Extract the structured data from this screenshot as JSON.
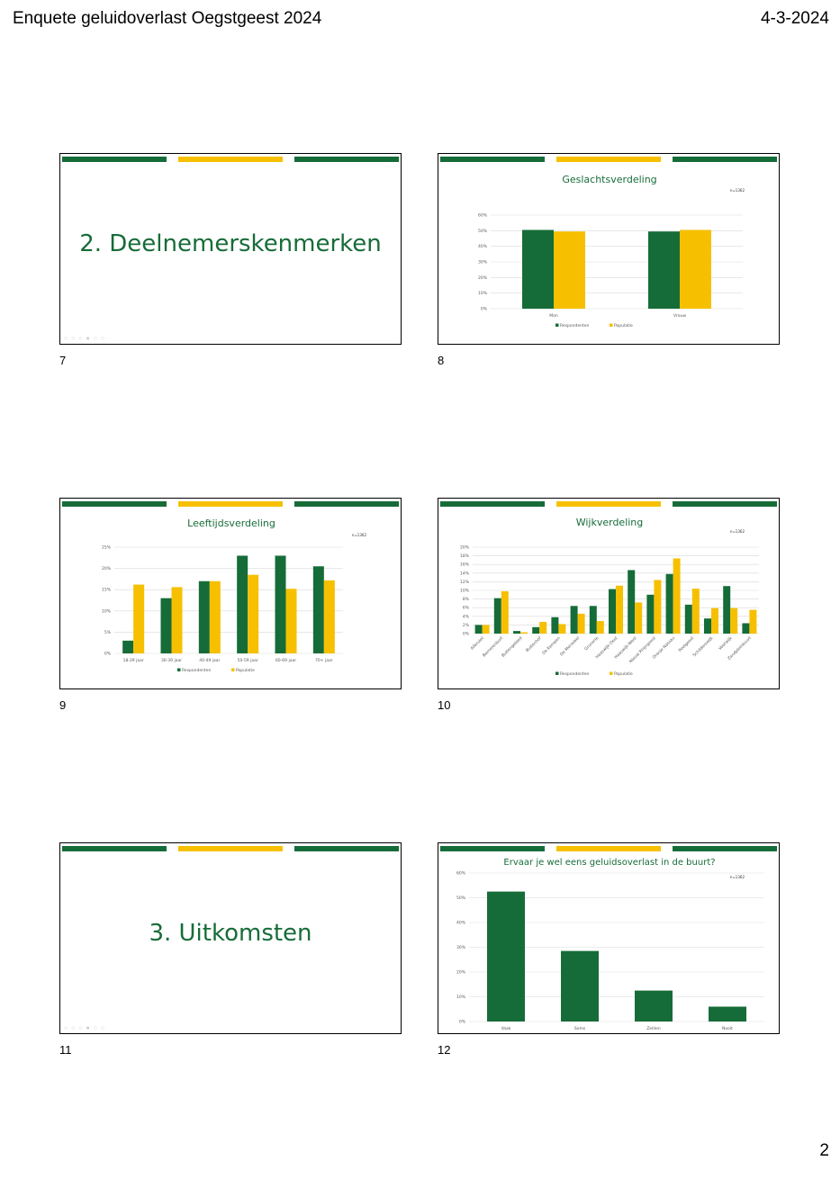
{
  "header": {
    "title": "Enquete geluidoverlast Oegstgeest 2024",
    "date": "4-3-2024"
  },
  "page_number": "2",
  "colors": {
    "green": "#166c38",
    "yellow": "#f6c000"
  },
  "slide_controls_icons": "○ ○ ○ ● ○ ○",
  "slides": [
    {
      "number": "7",
      "title": "2. Deelnemerskenmerken"
    },
    {
      "number": "8",
      "title": "Geslachtsverdeling",
      "note": "n=1362"
    },
    {
      "number": "9",
      "title": "Leeftijdsverdeling",
      "note": "n=1362"
    },
    {
      "number": "10",
      "title": "Wijkverdeling",
      "note": "n=1362"
    },
    {
      "number": "11",
      "title": "3. Uitkomsten"
    },
    {
      "number": "12",
      "title": "Ervaar je wel eens geluidsoverlast in de buurt?",
      "note": "n=1362"
    }
  ],
  "chart_data": [
    {
      "type": "bar",
      "title": "Geslachtsverdeling",
      "categories": [
        "Man",
        "Vrouw"
      ],
      "series": [
        {
          "name": "Respondenten",
          "values": [
            50.5,
            49.5
          ]
        },
        {
          "name": "Populatie",
          "values": [
            49.5,
            50.5
          ]
        }
      ],
      "ylim": [
        0,
        60
      ],
      "yticks": [
        "0%",
        "10%",
        "20%",
        "30%",
        "40%",
        "50%",
        "60%"
      ],
      "legend": "bottom",
      "grid": true
    },
    {
      "type": "bar",
      "title": "Leeftijdsverdeling",
      "categories": [
        "18-29 jaar",
        "30-39 jaar",
        "40-49 jaar",
        "50-59 jaar",
        "60-69 jaar",
        "70+ jaar"
      ],
      "series": [
        {
          "name": "Respondenten",
          "values": [
            3,
            13,
            17,
            23,
            23,
            20.5
          ]
        },
        {
          "name": "Populatie",
          "values": [
            16.2,
            15.6,
            17,
            18.5,
            15.2,
            17.2
          ]
        }
      ],
      "ylim": [
        0,
        25
      ],
      "yticks": [
        "0%",
        "5%",
        "10%",
        "15%",
        "20%",
        "25%"
      ],
      "legend": "bottom",
      "grid": true
    },
    {
      "type": "bar",
      "title": "Wijkverdeling",
      "categories": [
        "Allkruiet",
        "Bemerenburt",
        "Buitengebied",
        "Buitenhof",
        "De Kempen",
        "De Morsebel",
        "Grunerie",
        "Haaswijk-Oost",
        "Haaswijk-West",
        "Nieuw Rhijngeest",
        "Oranje Nassau",
        "Poelgeest",
        "Schilderswijk",
        "Voorwijk",
        "Zandpleinbuurt"
      ],
      "series": [
        {
          "name": "Respondenten",
          "values": [
            2,
            8.2,
            0.6,
            1.5,
            3.8,
            6.4,
            6.4,
            10.3,
            14.7,
            9,
            13.8,
            6.7,
            3.5,
            11,
            2.4
          ]
        },
        {
          "name": "Populatie",
          "values": [
            2,
            9.8,
            0.3,
            2.7,
            2.2,
            4.6,
            2.9,
            11.1,
            7.2,
            12.4,
            17.4,
            10.4,
            5.9,
            5.9,
            5.5
          ]
        }
      ],
      "ylim": [
        0,
        20
      ],
      "yticks": [
        "0%",
        "2%",
        "4%",
        "6%",
        "8%",
        "10%",
        "12%",
        "14%",
        "16%",
        "18%",
        "20%"
      ],
      "legend": "bottom",
      "grid": true
    },
    {
      "type": "bar",
      "title": "Ervaar je wel eens geluidsoverlast in de buurt?",
      "categories": [
        "Vaak",
        "Soms",
        "Zelden",
        "Nooit"
      ],
      "series": [
        {
          "name": "",
          "values": [
            52.5,
            28.5,
            12.5,
            6
          ]
        }
      ],
      "ylim": [
        0,
        60
      ],
      "yticks": [
        "0%",
        "10%",
        "20%",
        "30%",
        "40%",
        "50%",
        "60%"
      ],
      "grid": true
    }
  ]
}
